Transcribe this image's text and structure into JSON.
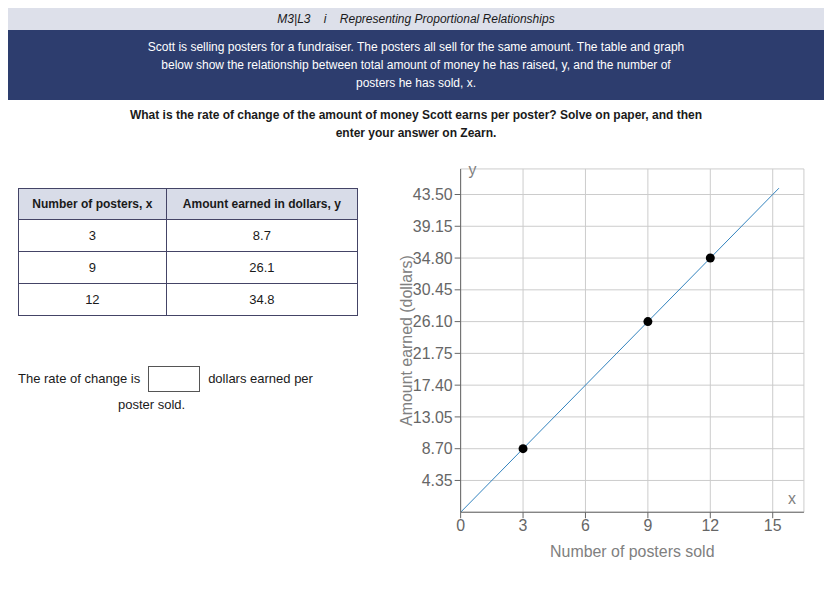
{
  "chart_data": {
    "type": "scatter",
    "title": "M3|L3    i    Representing Proportional Relationships",
    "subtitle": [
      "Scott is selling posters for a fundraiser. The posters all sell for the same amount. The table and graph",
      "below show the relationship between total amount of money he has raised, y, and the number of",
      "posters he has sold, x."
    ],
    "annotations": [
      "What is the rate of change of the amount of money Scott earns per poster? Solve on paper, and then",
      "enter your answer on Zearn.",
      "The rate of change is",
      "dollars earned per",
      "poster sold.",
      "x",
      "y"
    ],
    "table": {
      "columns": [
        "Number of posters, x",
        "Amount earned in dollars, y"
      ],
      "rows": [
        [
          3,
          8.7
        ],
        [
          9,
          26.1
        ],
        [
          12,
          34.8
        ]
      ]
    },
    "x_label": "Number of posters sold",
    "y_label": "Amount earned (dollars)",
    "series": [
      {
        "type": "scatter",
        "x": [
          3,
          9,
          12
        ],
        "values": [
          8.7,
          26.1,
          34.8
        ]
      },
      {
        "type": "line",
        "x": [
          0,
          15.3
        ],
        "values": [
          0,
          44.37
        ]
      }
    ],
    "xlim": [
      0,
      16.5
    ],
    "ylim": [
      0,
      47
    ],
    "xticks": [
      0,
      3,
      6,
      9,
      12,
      15
    ],
    "yticks": [
      4.35,
      {
        "value": 8.7,
        "label": "8.70"
      },
      13.05,
      {
        "value": 17.4,
        "label": "17.40"
      },
      21.75,
      {
        "value": 26.1,
        "label": "26.10"
      },
      30.45,
      {
        "value": 34.8,
        "label": "34.80"
      },
      39.15,
      {
        "value": 43.5,
        "label": "43.50"
      }
    ],
    "grid": true
  }
}
